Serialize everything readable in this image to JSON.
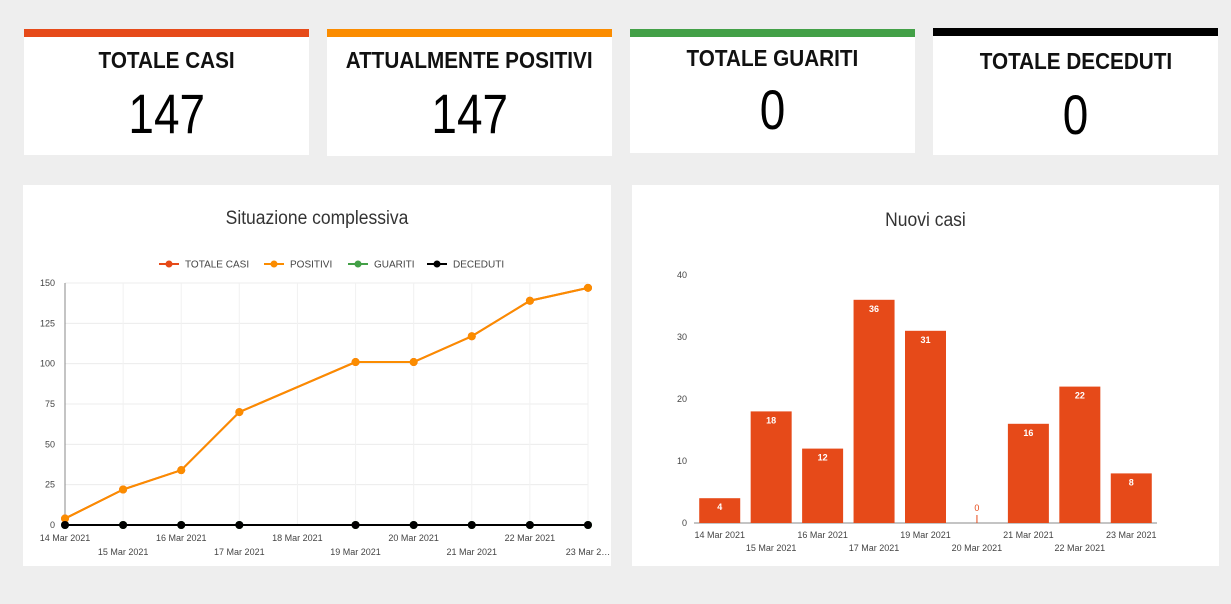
{
  "kpis": [
    {
      "label": "TOTALE CASI",
      "value": "147",
      "color": "#e64a19"
    },
    {
      "label": "ATTUALMENTE POSITIVI",
      "value": "147",
      "color": "#fb8c00"
    },
    {
      "label": "TOTALE GUARITI",
      "value": "0",
      "color": "#43a047"
    },
    {
      "label": "TOTALE DECEDUTI",
      "value": "0",
      "color": "#000000"
    }
  ],
  "chart_data": [
    {
      "type": "line",
      "title": "Situazione complessiva",
      "x": [
        "14 Mar 2021",
        "15 Mar 2021",
        "16 Mar 2021",
        "17 Mar 2021",
        "18 Mar 2021",
        "19 Mar 2021",
        "20 Mar 2021",
        "21 Mar 2021",
        "22 Mar 2021",
        "23 Mar 2…"
      ],
      "yticks": [
        "0",
        "25",
        "50",
        "75",
        "100",
        "125",
        "150"
      ],
      "ylim": [
        0,
        150
      ],
      "grid": true,
      "legend_position": "top",
      "series": [
        {
          "name": "TOTALE CASI",
          "color": "#e64a19",
          "values": [
            4,
            22,
            34,
            70,
            null,
            101,
            101,
            117,
            139,
            147
          ],
          "markers": [
            true,
            true,
            true,
            true,
            false,
            true,
            true,
            true,
            true,
            true
          ]
        },
        {
          "name": "POSITIVI",
          "color": "#fb8c00",
          "values": [
            4,
            22,
            34,
            70,
            null,
            101,
            101,
            117,
            139,
            147
          ],
          "markers": [
            true,
            true,
            true,
            true,
            false,
            true,
            true,
            true,
            true,
            true
          ]
        },
        {
          "name": "GUARITI",
          "color": "#43a047",
          "values": [
            0,
            0,
            0,
            0,
            0,
            0,
            0,
            0,
            0,
            0
          ],
          "markers": [
            true,
            true,
            true,
            true,
            false,
            true,
            true,
            true,
            true,
            true
          ]
        },
        {
          "name": "DECEDUTI",
          "color": "#000000",
          "values": [
            0,
            0,
            0,
            0,
            0,
            0,
            0,
            0,
            0,
            0
          ],
          "markers": [
            true,
            true,
            true,
            true,
            false,
            true,
            true,
            true,
            true,
            true
          ]
        }
      ]
    },
    {
      "type": "bar",
      "title": "Nuovi casi",
      "categories": [
        "14 Mar 2021",
        "15 Mar 2021",
        "16 Mar 2021",
        "17 Mar 2021",
        "19 Mar 2021",
        "20 Mar 2021",
        "21 Mar 2021",
        "22 Mar 2021",
        "23 Mar 2021"
      ],
      "values": [
        4,
        18,
        12,
        36,
        31,
        0,
        16,
        22,
        8
      ],
      "yticks": [
        "0",
        "10",
        "20",
        "30",
        "40"
      ],
      "ylim": [
        0,
        40
      ],
      "color": "#e64a19"
    }
  ]
}
